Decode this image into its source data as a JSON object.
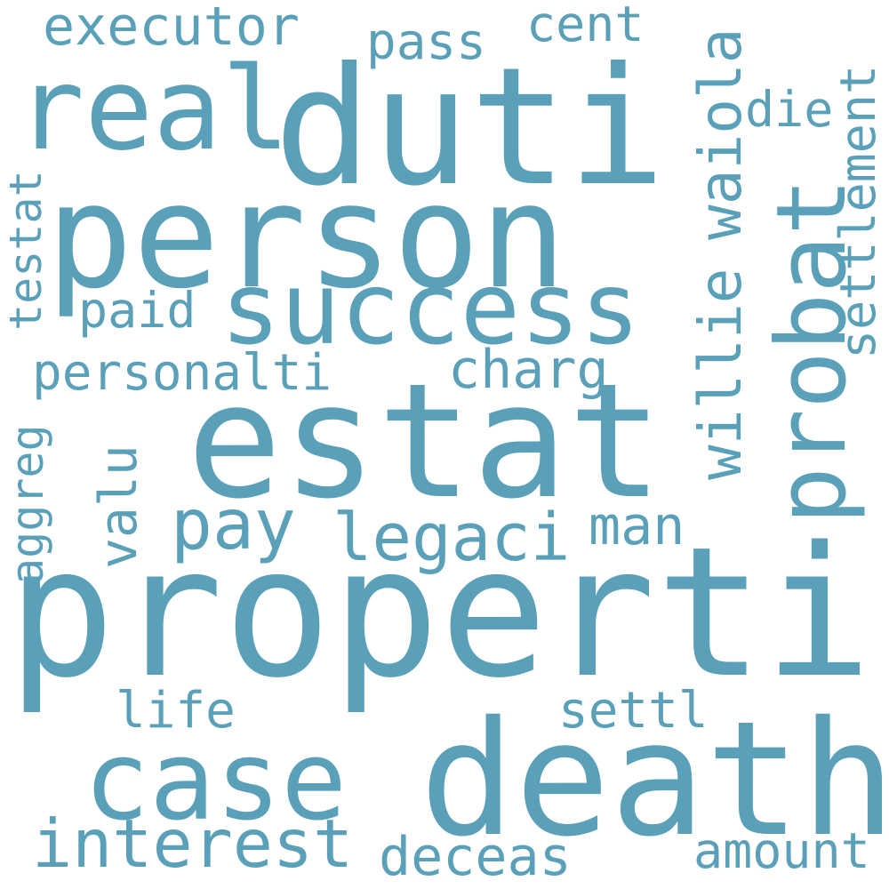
{
  "colors": {
    "background": "#ffffff",
    "word": "#5aa0b8"
  },
  "words": {
    "properti": "properti",
    "estat": "estat",
    "person": "person",
    "duti": "duti",
    "death": "death",
    "probat": "probat",
    "success": "success",
    "case": "case",
    "real": "real",
    "interest": "interest",
    "legaci": "legaci",
    "pay": "pay",
    "personalti": "personalti",
    "willie": "willie",
    "waiola": "waiola",
    "settlement": "settlement",
    "executor": "executor",
    "pass": "pass",
    "cent": "cent",
    "die": "die",
    "paid": "paid",
    "charg": "charg",
    "testat": "testat",
    "valu": "valu",
    "aggreg": "aggreg",
    "man": "man",
    "life": "life",
    "settl": "settl",
    "deceas": "deceas",
    "amount": "amount"
  }
}
